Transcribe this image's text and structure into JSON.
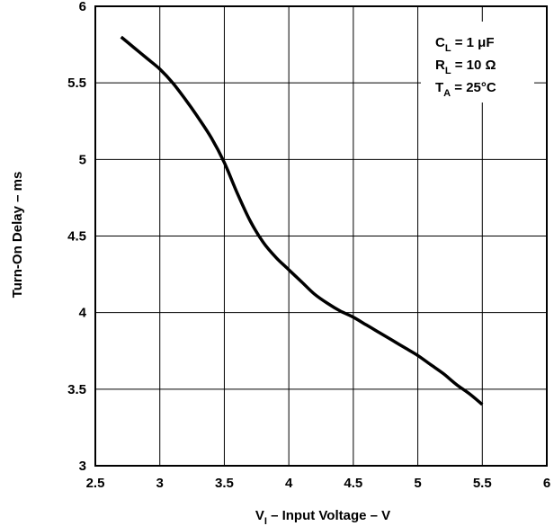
{
  "chart_data": {
    "type": "line",
    "title": "",
    "xlabel": {
      "main": "V",
      "sub": "I",
      "rest": " – Input Voltage – V"
    },
    "ylabel": "Turn-On Delay – ms",
    "xlim": [
      2.5,
      6
    ],
    "ylim": [
      3,
      6
    ],
    "xticks": [
      "2.5",
      "3",
      "3.5",
      "4",
      "4.5",
      "5",
      "5.5",
      "6"
    ],
    "yticks": [
      "3",
      "3.5",
      "4",
      "4.5",
      "5",
      "5.5",
      "6"
    ],
    "grid": true,
    "conditions": [
      {
        "main": "C",
        "sub": "L",
        "rest": " = 1 μF"
      },
      {
        "main": "R",
        "sub": "L",
        "rest": " = 10 Ω"
      },
      {
        "main": "T",
        "sub": "A",
        "rest": " = 25°C"
      }
    ],
    "series": [
      {
        "x": [
          2.7,
          2.8,
          2.9,
          3.0,
          3.1,
          3.2,
          3.3,
          3.4,
          3.5,
          3.6,
          3.7,
          3.8,
          3.9,
          4.0,
          4.1,
          4.2,
          4.3,
          4.4,
          4.5,
          4.6,
          4.7,
          4.8,
          4.9,
          5.0,
          5.1,
          5.2,
          5.3,
          5.4,
          5.5
        ],
        "y": [
          5.8,
          5.73,
          5.66,
          5.59,
          5.5,
          5.39,
          5.27,
          5.14,
          4.98,
          4.78,
          4.6,
          4.46,
          4.36,
          4.28,
          4.2,
          4.12,
          4.06,
          4.01,
          3.97,
          3.92,
          3.87,
          3.82,
          3.77,
          3.72,
          3.66,
          3.6,
          3.53,
          3.47,
          3.4
        ]
      }
    ],
    "line_color": "#000000"
  }
}
